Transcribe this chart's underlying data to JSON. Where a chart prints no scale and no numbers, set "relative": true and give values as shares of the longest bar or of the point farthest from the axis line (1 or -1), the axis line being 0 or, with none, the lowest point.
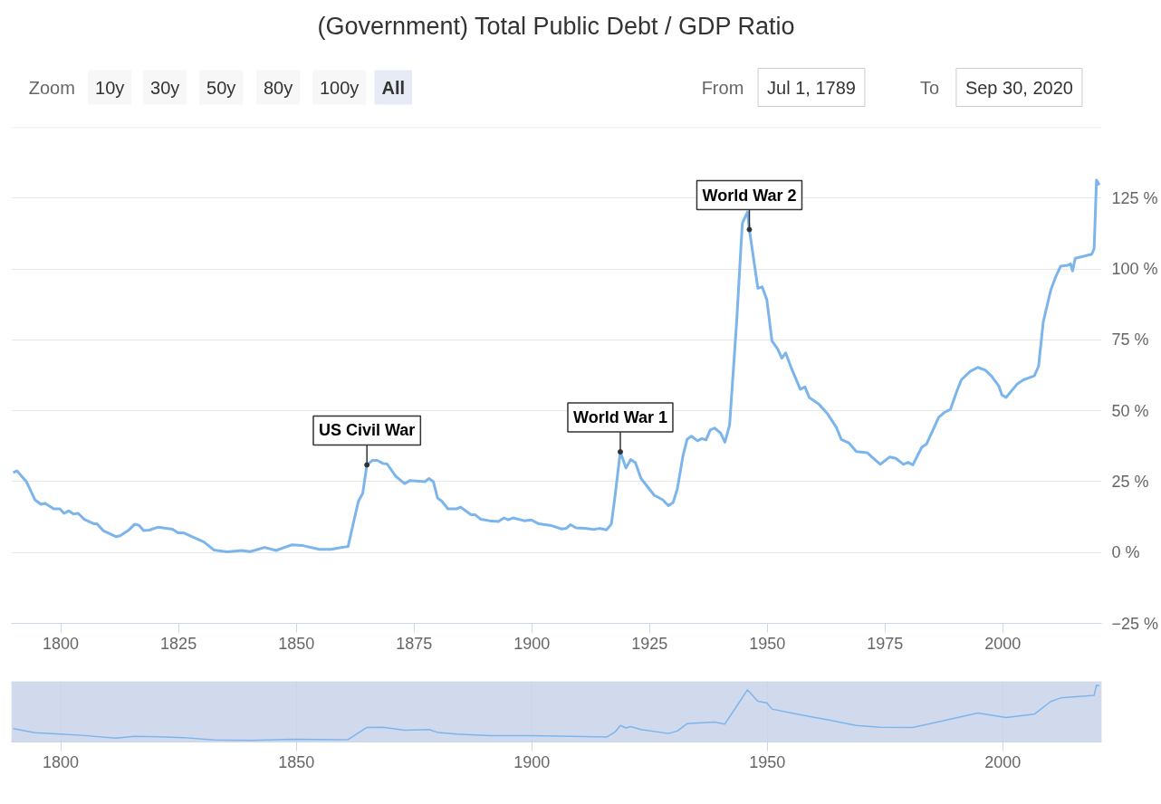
{
  "chart_data": [
    {
      "type": "line",
      "title": "(Government) Total Public Debt / GDP Ratio",
      "annotations": [
        "Zoom",
        "10y",
        "30y",
        "50y",
        "80y",
        "100y",
        "All",
        "From",
        "Jul 1, 1789",
        "To",
        "Sep 30, 2020",
        {
          "text": "US Civil War",
          "x": 1865,
          "y": 30.9
        },
        {
          "text": "World War 1",
          "x": 1918.8,
          "y": 35.5
        },
        {
          "text": "World War 2",
          "x": 1946.2,
          "y": 113.9
        }
      ],
      "series": [
        {
          "color": "#7cb5ec",
          "x": [
            1789.9,
            1790.7,
            1792.7,
            1794.5,
            1795.8,
            1796.7,
            1798.5,
            1799.8,
            1800.7,
            1801.7,
            1802.7,
            1803.7,
            1805,
            1807.1,
            1807.7,
            1809,
            1811.7,
            1812.6,
            1814.5,
            1815.7,
            1816.6,
            1817.6,
            1818.8,
            1820.6,
            1823.7,
            1824.9,
            1826.1,
            1830.4,
            1832.5,
            1835.3,
            1838.4,
            1840.2,
            1843.3,
            1845.7,
            1847.2,
            1849.1,
            1851.2,
            1854.9,
            1857.4,
            1858.9,
            1861,
            1862.3,
            1863.2,
            1864.1,
            1865,
            1866.2,
            1867.2,
            1868.4,
            1869.3,
            1871.1,
            1873,
            1874.2,
            1877.3,
            1878.2,
            1879.1,
            1880,
            1880.9,
            1882.2,
            1884,
            1884.9,
            1887.1,
            1888,
            1889.2,
            1891,
            1892.9,
            1894.1,
            1895,
            1896,
            1898.4,
            1899.9,
            1901.5,
            1903.9,
            1906.4,
            1907.3,
            1908.2,
            1909.4,
            1911.3,
            1913.1,
            1914.3,
            1915.9,
            1916.9,
            1917.7,
            1918.8,
            1920,
            1921,
            1922,
            1923.2,
            1926,
            1927.8,
            1929,
            1930,
            1930.9,
            1932.1,
            1933,
            1933.9,
            1935.2,
            1936.1,
            1937,
            1937.9,
            1938.8,
            1940.1,
            1941,
            1942,
            1943.5,
            1944.7,
            1945.8,
            1946.2,
            1948,
            1948.9,
            1949.9,
            1951,
            1952.2,
            1953.1,
            1953.9,
            1955.1,
            1957,
            1958,
            1958.9,
            1960.9,
            1962.8,
            1964.7,
            1965.7,
            1967.3,
            1968.9,
            1971.2,
            1972.2,
            1974,
            1976,
            1977.3,
            1978.9,
            1979.9,
            1980.9,
            1982.8,
            1983.8,
            1986.4,
            1987.6,
            1988.9,
            1990.2,
            1991.2,
            1993.1,
            1994.7,
            1996.3,
            1997.6,
            1999.2,
            1999.8,
            2000.7,
            2003.1,
            2004.4,
            2006.7,
            2007.6,
            2008.6,
            2010.2,
            2011.2,
            2012.3,
            2013.8,
            2014.4,
            2014.8,
            2015.4,
            2018.9,
            2019.4,
            2019.9,
            2020.5
          ],
          "values": [
            28.2,
            28.8,
            25,
            18.6,
            17,
            17.3,
            15.4,
            15.4,
            13.8,
            14.7,
            13.6,
            13.8,
            11.7,
            10.1,
            10.1,
            7.7,
            5.6,
            5.9,
            8,
            10,
            9.6,
            7.7,
            7.9,
            8.9,
            8.2,
            6.9,
            6.9,
            3.7,
            0.9,
            0.2,
            0.7,
            0.3,
            1.8,
            0.7,
            1.6,
            2.7,
            2.5,
            1.1,
            1.1,
            1.6,
            2.1,
            11.7,
            18.1,
            20.8,
            30.9,
            32.5,
            32.5,
            31.4,
            31.2,
            26.9,
            24.3,
            25.4,
            25,
            26.1,
            25,
            19.2,
            18.1,
            15.4,
            15.4,
            16,
            13.3,
            13.3,
            11.7,
            11.2,
            10.9,
            12.2,
            11.5,
            12.2,
            11.2,
            11.5,
            10.1,
            9.6,
            8.3,
            8.5,
            9.8,
            8.7,
            8.5,
            8.1,
            8.5,
            8,
            10.1,
            20.2,
            35.5,
            29.8,
            32.8,
            31.7,
            26.1,
            20.2,
            18.6,
            16.5,
            17.6,
            22.4,
            34.1,
            40,
            41,
            39.4,
            40.2,
            39.7,
            43.2,
            43.9,
            42.1,
            38.9,
            44.9,
            81.4,
            116.1,
            120.1,
            113.9,
            93.2,
            93.7,
            89.2,
            74.6,
            71.8,
            68.5,
            70.4,
            65.1,
            57.6,
            58.4,
            54.7,
            52.4,
            48.9,
            44,
            39.9,
            38.7,
            35.6,
            35.2,
            33.7,
            31.1,
            33.7,
            33.2,
            31.1,
            31.8,
            30.9,
            37.1,
            38.2,
            47.7,
            49.4,
            50.5,
            56.7,
            60.9,
            63.9,
            65.3,
            64.3,
            62.2,
            58.6,
            55.6,
            54.7,
            59.5,
            60.9,
            62.3,
            65.7,
            81.4,
            92.6,
            97.1,
            101,
            101.3,
            101.8,
            99.3,
            103.8,
            105.2,
            107.2,
            131.3,
            129.6
          ]
        }
      ],
      "xlim": [
        1789.5,
        2021
      ],
      "ylim": [
        -25,
        150
      ],
      "xticks": [
        1800,
        1825,
        1850,
        1875,
        1900,
        1925,
        1950,
        1975,
        2000
      ],
      "yticks": [
        {
          "value": -25,
          "label": "−25 %"
        },
        {
          "value": 0,
          "label": "0 %"
        },
        {
          "value": 25,
          "label": "25 %"
        },
        {
          "value": 50,
          "label": "50 %"
        },
        {
          "value": 75,
          "label": "75 %"
        },
        {
          "value": 100,
          "label": "100 %"
        },
        {
          "value": 125,
          "label": "125 %"
        }
      ],
      "grid": "y"
    },
    {
      "type": "line",
      "series": [
        {
          "color": "#7cb5ec",
          "x": [
            1789.9,
            1794.5,
            1799.8,
            1805,
            1811.7,
            1815.7,
            1820.6,
            1826.1,
            1832.5,
            1840.2,
            1849.1,
            1858.9,
            1861,
            1863.2,
            1865,
            1868.4,
            1873,
            1878.2,
            1880,
            1884,
            1891,
            1899.9,
            1908.2,
            1915.9,
            1917.7,
            1918.8,
            1920,
            1921,
            1923.2,
            1929,
            1930.9,
            1933,
            1938.8,
            1941,
            1943.5,
            1945.8,
            1948,
            1949.9,
            1951,
            1955.1,
            1962.8,
            1968.9,
            1974,
            1980.9,
            1988.9,
            1994.7,
            2000.7,
            2006.7,
            2010.2,
            2012.3,
            2019.4,
            2019.9,
            2020.5
          ],
          "values": [
            0.213,
            0.14,
            0.115,
            0.087,
            0.04,
            0.074,
            0.066,
            0.05,
            0.005,
            0,
            0.018,
            0.01,
            0.014,
            0.136,
            0.234,
            0.237,
            0.183,
            0.197,
            0.144,
            0.115,
            0.083,
            0.085,
            0.073,
            0.059,
            0.152,
            0.269,
            0.225,
            0.248,
            0.197,
            0.124,
            0.169,
            0.303,
            0.333,
            0.295,
            0.619,
            0.915,
            0.709,
            0.679,
            0.567,
            0.495,
            0.371,
            0.269,
            0.235,
            0.234,
            0.383,
            0.496,
            0.415,
            0.473,
            0.705,
            0.769,
            0.816,
            1,
            0.987
          ]
        }
      ],
      "relative": true,
      "xlim": [
        1789.5,
        2021
      ],
      "xticks": [
        1800,
        1850,
        1900,
        1950,
        2000
      ],
      "grid": "x",
      "tick_labels": "x",
      "bands": [
        {
          "axis": "x",
          "from": 1789.5,
          "to": 2021,
          "color": "#ccd6eb"
        }
      ]
    }
  ]
}
